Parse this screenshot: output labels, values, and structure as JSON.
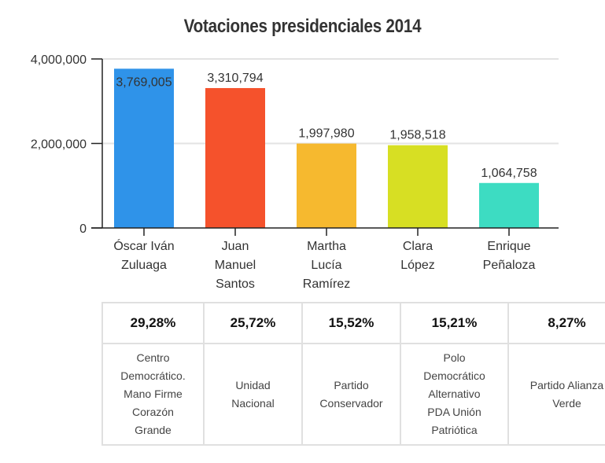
{
  "chart_data": {
    "type": "bar",
    "title": "Votaciones presidenciales 2014",
    "xlabel": "",
    "ylabel": "",
    "ylim": [
      0,
      4000000
    ],
    "yticks": [
      0,
      2000000,
      4000000
    ],
    "ytick_labels": [
      "0",
      "2,000,000",
      "4,000,000"
    ],
    "grid": true,
    "categories": [
      [
        "Óscar Iván",
        "Zuluaga"
      ],
      [
        "Juan",
        "Manuel",
        "Santos"
      ],
      [
        "Martha",
        "Lucía",
        "Ramírez"
      ],
      [
        "Clara",
        "López"
      ],
      [
        "Enrique",
        "Peñaloza"
      ]
    ],
    "values": [
      3769005,
      3310794,
      1997980,
      1958518,
      1064758
    ],
    "value_labels": [
      "3,769,005",
      "3,310,794",
      "1,997,980",
      "1,958,518",
      "1,064,758"
    ],
    "colors": [
      "#2f93e9",
      "#f5522c",
      "#f6b92f",
      "#d7df23",
      "#3ddcc2"
    ],
    "label_inside_first": true
  },
  "table": {
    "percentages": [
      "29,28%",
      "25,72%",
      "15,52%",
      "15,21%",
      "8,27%"
    ],
    "parties": [
      [
        "Centro",
        "Democrático.",
        "Mano Firme",
        "Corazón",
        "Grande"
      ],
      [
        "Unidad",
        "Nacional"
      ],
      [
        "Partido",
        "Conservador"
      ],
      [
        "Polo",
        "Democrático",
        "Alternativo",
        "PDA Unión",
        "Patriótica"
      ],
      [
        "Partido Alianza",
        "Verde"
      ]
    ]
  }
}
